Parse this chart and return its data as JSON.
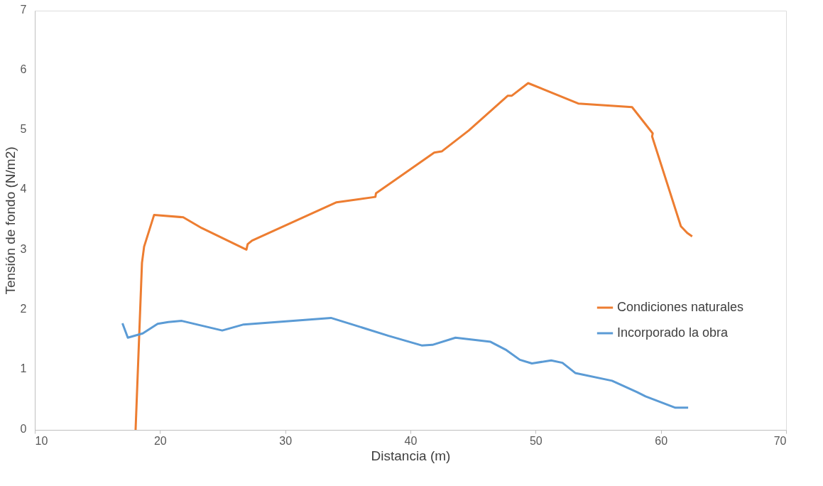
{
  "chart_data": {
    "type": "line",
    "xlabel": "Distancia (m)",
    "ylabel": "Tensión de fondo (N/m2)",
    "xlim": [
      10,
      70
    ],
    "xticks": [
      10,
      20,
      30,
      40,
      50,
      60,
      70
    ],
    "ylim": [
      0,
      7
    ],
    "yticks": [
      0,
      1,
      2,
      3,
      4,
      5,
      6,
      7
    ],
    "grid": false,
    "legend": "right",
    "marker": "none",
    "line_style": "solid",
    "series": [
      {
        "name": "Condiciones naturales",
        "color": "#ed7d31",
        "x": [
          18.05,
          18.56,
          18.73,
          19.53,
          21.85,
          23.33,
          26.9,
          27.0,
          27.35,
          34.1,
          37.2,
          37.25,
          41.9,
          42.5,
          44.66,
          47.78,
          48.1,
          49.4,
          53.4,
          57.7,
          59.35,
          59.3,
          61.6,
          62.1,
          62.5
        ],
        "values": [
          0,
          2.79,
          3.06,
          3.59,
          3.55,
          3.37,
          3.01,
          3.1,
          3.16,
          3.8,
          3.89,
          3.95,
          4.63,
          4.65,
          5.0,
          5.58,
          5.58,
          5.79,
          5.45,
          5.39,
          4.95,
          4.9,
          3.4,
          3.29,
          3.23
        ]
      },
      {
        "name": "Incorporado la obra",
        "color": "#5b9bd5",
        "x": [
          17.0,
          17.43,
          18.62,
          19.81,
          20.66,
          21.74,
          24.97,
          26.68,
          33.65,
          35.35,
          38.25,
          40.9,
          41.76,
          43.6,
          46.4,
          47.6,
          48.74,
          49.7,
          51.24,
          52.14,
          53.16,
          56.1,
          58.1,
          58.78,
          61.16,
          62.18
        ],
        "values": [
          1.78,
          1.54,
          1.61,
          1.77,
          1.8,
          1.82,
          1.66,
          1.76,
          1.87,
          1.76,
          1.57,
          1.41,
          1.42,
          1.54,
          1.47,
          1.34,
          1.17,
          1.11,
          1.16,
          1.12,
          0.95,
          0.82,
          0.63,
          0.56,
          0.37,
          0.37
        ]
      }
    ]
  }
}
